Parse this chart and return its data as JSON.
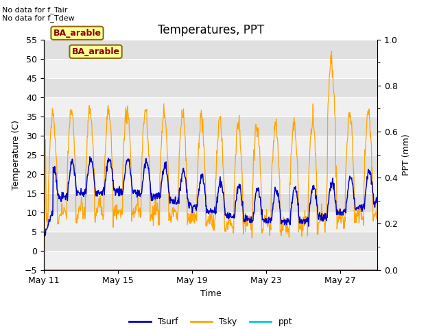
{
  "title": "Temperatures, PPT",
  "xlabel": "Time",
  "ylabel_left": "Temperature (C)",
  "ylabel_right": "PPT (mm)",
  "ylim_left": [
    -5,
    55
  ],
  "ylim_right": [
    0.0,
    1.0
  ],
  "yticks_left": [
    -5,
    0,
    5,
    10,
    15,
    20,
    25,
    30,
    35,
    40,
    45,
    50,
    55
  ],
  "yticks_right": [
    0.0,
    0.2,
    0.4,
    0.6,
    0.8,
    1.0
  ],
  "xtick_labels": [
    "May 11",
    "May 15",
    "May 19",
    "May 23",
    "May 27"
  ],
  "no_data_text1": "No data for f_Tair",
  "no_data_text2": "No data for f_Tdew",
  "site_label": "BA_arable",
  "tsurf_color": "#0000CC",
  "tsky_color": "#FFA500",
  "ppt_color": "#00CCCC",
  "bg_light": "#F0F0F0",
  "bg_dark": "#E0E0E0",
  "n_days": 18,
  "pts_per_day": 48,
  "figsize": [
    6.4,
    4.8
  ],
  "dpi": 100
}
